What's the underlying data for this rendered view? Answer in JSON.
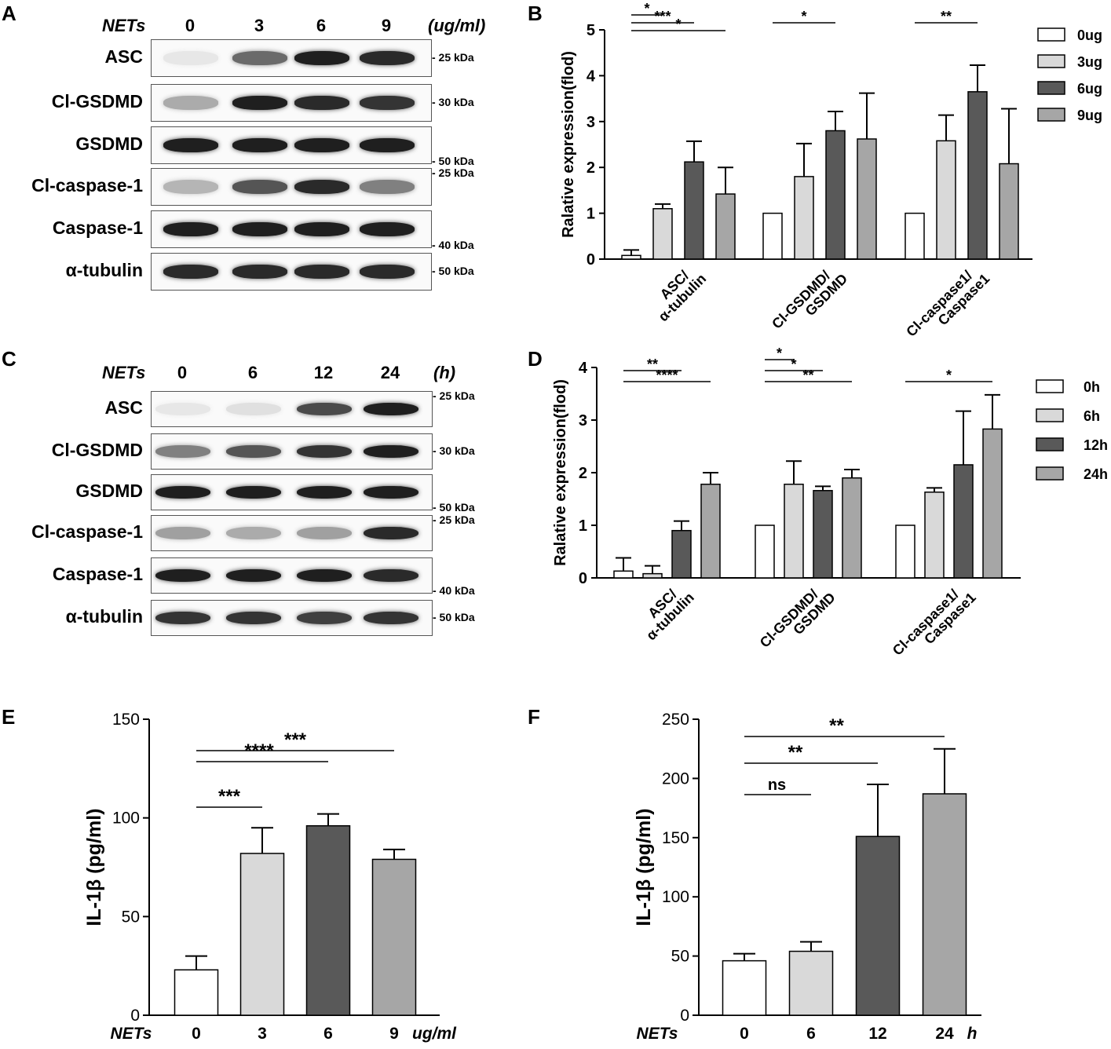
{
  "panels": {
    "A": {
      "letter": "A",
      "header_label": "NETs",
      "lanes": [
        "0",
        "3",
        "6",
        "9"
      ],
      "unit": "(ug/ml)",
      "rows": [
        {
          "label": "ASC",
          "kda": "25 kDa",
          "kda_pos": "mid",
          "intensities": [
            0.02,
            0.6,
            0.95,
            0.9
          ]
        },
        {
          "label": "Cl-GSDMD",
          "kda": "30 kDa",
          "kda_pos": "mid",
          "intensities": [
            0.3,
            0.95,
            0.9,
            0.85
          ]
        },
        {
          "label": "GSDMD",
          "kda": "50 kDa",
          "kda_pos": "bottom",
          "intensities": [
            0.95,
            0.95,
            0.95,
            0.95
          ]
        },
        {
          "label": "Cl-caspase-1",
          "kda": "25 kDa",
          "kda_pos": "top",
          "intensities": [
            0.25,
            0.7,
            0.9,
            0.5
          ]
        },
        {
          "label": "Caspase-1",
          "kda": "40 kDa",
          "kda_pos": "bottom",
          "intensities": [
            0.95,
            0.95,
            0.95,
            0.95
          ]
        },
        {
          "label": "α-tubulin",
          "kda": "50 kDa",
          "kda_pos": "mid",
          "intensities": [
            0.9,
            0.9,
            0.9,
            0.9
          ]
        }
      ]
    },
    "C": {
      "letter": "C",
      "header_label": "NETs",
      "lanes": [
        "0",
        "6",
        "12",
        "24"
      ],
      "unit": "(h)",
      "rows": [
        {
          "label": "ASC",
          "kda": "25 kDa",
          "kda_pos": "top",
          "intensities": [
            0.02,
            0.05,
            0.75,
            0.95
          ]
        },
        {
          "label": "Cl-GSDMD",
          "kda": "30 kDa",
          "kda_pos": "mid",
          "intensities": [
            0.5,
            0.7,
            0.85,
            0.95
          ]
        },
        {
          "label": "GSDMD",
          "kda": "50 kDa",
          "kda_pos": "bottom",
          "intensities": [
            0.95,
            0.95,
            0.95,
            0.95
          ]
        },
        {
          "label": "Cl-caspase-1",
          "kda": "25 kDa",
          "kda_pos": "top",
          "intensities": [
            0.35,
            0.3,
            0.35,
            0.9
          ]
        },
        {
          "label": "Caspase-1",
          "kda": "40 kDa",
          "kda_pos": "bottom",
          "intensities": [
            0.95,
            0.95,
            0.95,
            0.9
          ]
        },
        {
          "label": "α-tubulin",
          "kda": "50 kDa",
          "kda_pos": "mid",
          "intensities": [
            0.85,
            0.85,
            0.8,
            0.85
          ]
        }
      ]
    },
    "E_letter": "E",
    "F_letter": "F",
    "B_letter": "B",
    "D_letter": "D"
  },
  "chart_data": [
    {
      "id": "B",
      "type": "bar",
      "ylabel": "Ralative expression(flod)",
      "ylim": [
        0,
        5
      ],
      "yticks": [
        0,
        1,
        2,
        3,
        4,
        5
      ],
      "categories": [
        "ASC/ α-tubulin",
        "Cl-GSDMD/ GSDMD",
        "Cl-caspase1/ Caspase1"
      ],
      "category_lines": [
        [
          "ASC/",
          "α-tubulin"
        ],
        [
          "Cl-GSDMD/",
          "GSDMD"
        ],
        [
          "Cl-caspase1/",
          "Caspase1"
        ]
      ],
      "legend_position": "right",
      "series": [
        {
          "name": "0ug",
          "color": "#ffffff",
          "values": [
            0.08,
            1.0,
            1.0
          ],
          "errors": [
            0.12,
            0,
            0
          ]
        },
        {
          "name": "3ug",
          "color": "#d9d9d9",
          "values": [
            1.1,
            1.8,
            2.58
          ],
          "errors": [
            0.1,
            0.72,
            0.56
          ]
        },
        {
          "name": "6ug",
          "color": "#595959",
          "values": [
            2.12,
            2.8,
            3.65
          ],
          "errors": [
            0.45,
            0.42,
            0.58
          ]
        },
        {
          "name": "9ug",
          "color": "#a6a6a6",
          "values": [
            1.42,
            2.62,
            2.08
          ],
          "errors": [
            0.58,
            1.0,
            1.2
          ]
        }
      ],
      "significance": [
        {
          "cat": 0,
          "from": 0,
          "to": 1,
          "label": "*",
          "level": 0
        },
        {
          "cat": 0,
          "from": 0,
          "to": 2,
          "label": "***",
          "level": 1
        },
        {
          "cat": 0,
          "from": 0,
          "to": 3,
          "label": "*",
          "level": 2
        },
        {
          "cat": 1,
          "from": 0,
          "to": 2,
          "label": "*",
          "level": 1
        },
        {
          "cat": 2,
          "from": 0,
          "to": 2,
          "label": "**",
          "level": 1
        }
      ]
    },
    {
      "id": "D",
      "type": "bar",
      "ylabel": "Ralative expression(flod)",
      "ylim": [
        0,
        4
      ],
      "yticks": [
        0,
        1,
        2,
        3,
        4
      ],
      "categories": [
        "ASC/ α-tubulin",
        "Cl-GSDMD/ GSDMD",
        "Cl-caspase1/ Caspase1"
      ],
      "category_lines": [
        [
          "ASC/",
          "α-tubulin"
        ],
        [
          "Cl-GSDMD/",
          "GSDMD"
        ],
        [
          "Cl-caspase1/",
          "Caspase1"
        ]
      ],
      "legend_position": "right",
      "series": [
        {
          "name": "0h",
          "color": "#ffffff",
          "values": [
            0.13,
            1.0,
            1.0
          ],
          "errors": [
            0.25,
            0,
            0
          ]
        },
        {
          "name": "6h",
          "color": "#d9d9d9",
          "values": [
            0.08,
            1.78,
            1.63
          ],
          "errors": [
            0.15,
            0.44,
            0.08
          ]
        },
        {
          "name": "12h",
          "color": "#595959",
          "values": [
            0.9,
            1.66,
            2.15
          ],
          "errors": [
            0.18,
            0.08,
            1.02
          ]
        },
        {
          "name": "24h",
          "color": "#a6a6a6",
          "values": [
            1.78,
            1.9,
            2.83
          ],
          "errors": [
            0.22,
            0.16,
            0.65
          ]
        }
      ],
      "significance": [
        {
          "cat": 0,
          "from": 0,
          "to": 2,
          "label": "**",
          "level": 1
        },
        {
          "cat": 0,
          "from": 0,
          "to": 3,
          "label": "****",
          "level": 2
        },
        {
          "cat": 1,
          "from": 0,
          "to": 1,
          "label": "*",
          "level": 0
        },
        {
          "cat": 1,
          "from": 0,
          "to": 2,
          "label": "*",
          "level": 1
        },
        {
          "cat": 1,
          "from": 0,
          "to": 3,
          "label": "**",
          "level": 2
        },
        {
          "cat": 2,
          "from": 0,
          "to": 3,
          "label": "*",
          "level": 2
        }
      ]
    },
    {
      "id": "E",
      "type": "bar",
      "ylabel": "IL-1β (pg/ml)",
      "xlabel_prefix": "NETs",
      "xlabel_unit": "ug/ml",
      "ylim": [
        0,
        150
      ],
      "yticks": [
        0,
        50,
        100,
        150
      ],
      "categories": [
        "0",
        "3",
        "6",
        "9"
      ],
      "values": [
        23,
        82,
        96,
        79
      ],
      "errors": [
        7,
        13,
        6,
        5
      ],
      "colors": [
        "#ffffff",
        "#d9d9d9",
        "#595959",
        "#a6a6a6"
      ],
      "significance": [
        {
          "from": 0,
          "to": 1,
          "label": "***",
          "level": 0
        },
        {
          "from": 0,
          "to": 2,
          "label": "****",
          "level": 1
        },
        {
          "from": 0,
          "to": 3,
          "label": "***",
          "level": 2
        }
      ]
    },
    {
      "id": "F",
      "type": "bar",
      "ylabel": "IL-1β (pg/ml)",
      "xlabel_prefix": "NETs",
      "xlabel_unit": "h",
      "ylim": [
        0,
        250
      ],
      "yticks": [
        0,
        50,
        100,
        150,
        200,
        250
      ],
      "categories": [
        "0",
        "6",
        "12",
        "24"
      ],
      "values": [
        46,
        54,
        151,
        187
      ],
      "errors": [
        6,
        8,
        44,
        38
      ],
      "colors": [
        "#ffffff",
        "#d9d9d9",
        "#595959",
        "#a6a6a6"
      ],
      "significance": [
        {
          "from": 0,
          "to": 1,
          "label": "ns",
          "level": 0
        },
        {
          "from": 0,
          "to": 2,
          "label": "**",
          "level": 1
        },
        {
          "from": 0,
          "to": 3,
          "label": "**",
          "level": 2
        }
      ]
    }
  ]
}
